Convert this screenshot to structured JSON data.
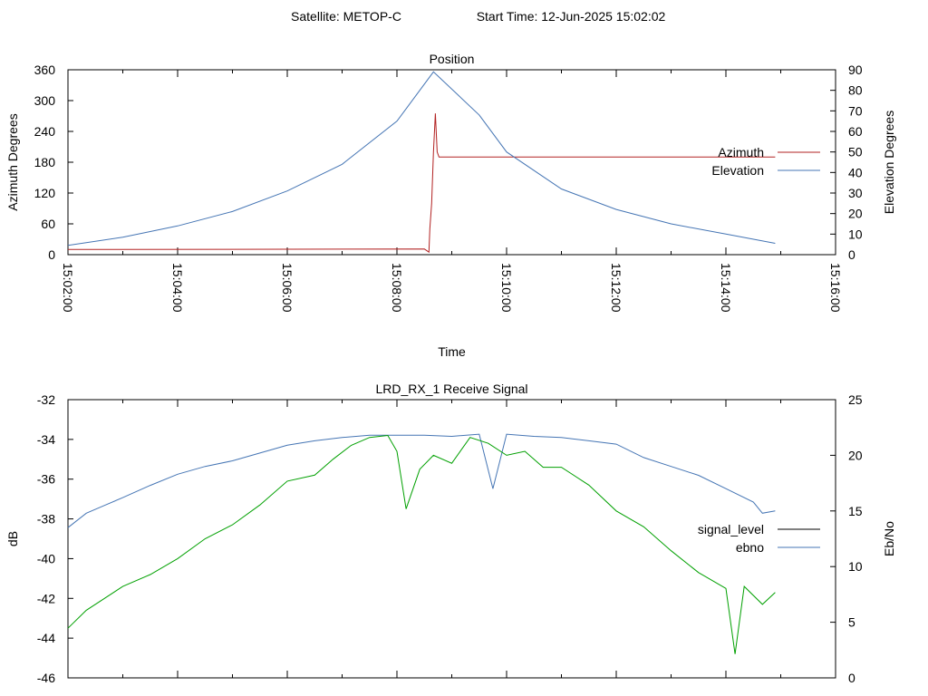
{
  "header": {
    "satellite": "Satellite: METOP-C",
    "start_time": "Start Time: 12-Jun-2025 15:02:02"
  },
  "chart_data": [
    {
      "type": "line",
      "title": "Position",
      "xlabel": "Time",
      "ylabel": "Azimuth Degrees",
      "y2label": "Elevation Degrees",
      "x_range": [
        "15:02:00",
        "15:16:00"
      ],
      "x_ticks": [
        "15:02:00",
        "15:04:00",
        "15:06:00",
        "15:08:00",
        "15:10:00",
        "15:12:00",
        "15:14:00",
        "15:16:00"
      ],
      "ylim": [
        0,
        360
      ],
      "y_ticks": [
        "0",
        "60",
        "120",
        "180",
        "240",
        "300",
        "360"
      ],
      "y2lim": [
        0,
        90
      ],
      "y2_ticks": [
        "0",
        "10",
        "20",
        "30",
        "40",
        "50",
        "60",
        "70",
        "80",
        "90"
      ],
      "grid": false,
      "legend": "right",
      "series": [
        {
          "name": "Azimuth",
          "axis": "y",
          "color": "#b22222",
          "x": [
            "15:02:00",
            "15:08:30",
            "15:08:35",
            "15:08:36",
            "15:08:38",
            "15:08:40",
            "15:08:42",
            "15:08:44",
            "15:08:46",
            "15:14:54"
          ],
          "y": [
            10,
            11,
            5,
            50,
            100,
            200,
            275,
            200,
            190,
            190
          ]
        },
        {
          "name": "Elevation",
          "axis": "y2",
          "color": "#4575b4",
          "x": [
            "15:02:00",
            "15:03:00",
            "15:04:00",
            "15:05:00",
            "15:06:00",
            "15:07:00",
            "15:08:00",
            "15:08:40",
            "15:09:30",
            "15:10:00",
            "15:11:00",
            "15:12:00",
            "15:13:00",
            "15:14:00",
            "15:14:54"
          ],
          "y": [
            4.5,
            8.5,
            14,
            21,
            31,
            44,
            65,
            89,
            68,
            50,
            32,
            22,
            15,
            10,
            5.5
          ]
        }
      ]
    },
    {
      "type": "line",
      "title": "LRD_RX_1 Receive Signal",
      "xlabel": "",
      "ylabel": "dB",
      "y2label": "Eb/No",
      "x_range": [
        "15:02:00",
        "15:16:00"
      ],
      "ylim": [
        -46,
        -32
      ],
      "y_ticks": [
        "-46",
        "-44",
        "-42",
        "-40",
        "-38",
        "-36",
        "-34",
        "-32"
      ],
      "y2lim": [
        0,
        25
      ],
      "y2_ticks": [
        "0",
        "5",
        "10",
        "15",
        "20",
        "25"
      ],
      "grid": false,
      "legend": "right",
      "series": [
        {
          "name": "signal_level",
          "axis": "y",
          "color": "#000000",
          "x": [],
          "y": []
        },
        {
          "name": "ebno",
          "axis": "y2",
          "color": "#4575b4",
          "x": [
            "15:02:00",
            "15:02:20",
            "15:02:40",
            "15:03:00",
            "15:03:30",
            "15:04:00",
            "15:04:30",
            "15:05:00",
            "15:05:30",
            "15:06:00",
            "15:06:30",
            "15:07:00",
            "15:07:30",
            "15:08:00",
            "15:08:30",
            "15:09:00",
            "15:09:30",
            "15:09:45",
            "15:10:00",
            "15:10:30",
            "15:11:00",
            "15:11:30",
            "15:12:00",
            "15:12:30",
            "15:13:00",
            "15:13:30",
            "15:14:00",
            "15:14:30",
            "15:14:40",
            "15:14:54"
          ],
          "y": [
            13.5,
            14.8,
            15.5,
            16.2,
            17.3,
            18.3,
            19.0,
            19.5,
            20.2,
            20.9,
            21.3,
            21.6,
            21.8,
            21.8,
            21.8,
            21.7,
            21.9,
            17.0,
            21.9,
            21.7,
            21.6,
            21.3,
            21.0,
            19.8,
            19.0,
            18.2,
            17.0,
            15.8,
            14.8,
            15.0
          ]
        },
        {
          "name": "",
          "axis": "y",
          "color": "#00a000",
          "x": [
            "15:02:00",
            "15:02:20",
            "15:02:40",
            "15:03:00",
            "15:03:30",
            "15:04:00",
            "15:04:30",
            "15:05:00",
            "15:05:30",
            "15:06:00",
            "15:06:30",
            "15:06:50",
            "15:07:10",
            "15:07:30",
            "15:07:50",
            "15:08:00",
            "15:08:10",
            "15:08:25",
            "15:08:40",
            "15:09:00",
            "15:09:20",
            "15:09:40",
            "15:10:00",
            "15:10:20",
            "15:10:40",
            "15:11:00",
            "15:11:30",
            "15:12:00",
            "15:12:30",
            "15:13:00",
            "15:13:30",
            "15:14:00",
            "15:14:10",
            "15:14:20",
            "15:14:40",
            "15:14:54"
          ],
          "y": [
            -43.5,
            -42.6,
            -42.0,
            -41.4,
            -40.8,
            -40.0,
            -39.0,
            -38.3,
            -37.3,
            -36.1,
            -35.8,
            -35.0,
            -34.3,
            -33.9,
            -33.8,
            -34.6,
            -37.5,
            -35.5,
            -34.8,
            -35.2,
            -33.9,
            -34.2,
            -34.8,
            -34.6,
            -35.4,
            -35.4,
            -36.3,
            -37.6,
            -38.4,
            -39.6,
            -40.7,
            -41.5,
            -44.8,
            -41.4,
            -42.3,
            -41.7
          ]
        }
      ]
    }
  ]
}
